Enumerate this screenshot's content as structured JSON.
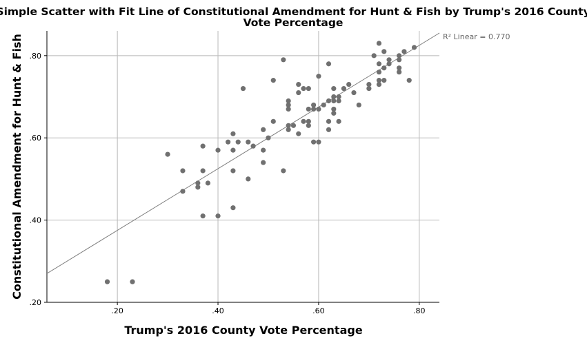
{
  "chart_data": {
    "type": "scatter",
    "title_line1": "Simple Scatter with Fit Line of Constitutional Amendment for Hunt & Fish  by Trump's 2016 County",
    "title_line2": "Vote Percentage",
    "xlabel": "Trump's 2016 County Vote Percentage",
    "ylabel": "Constitutional Amendment for Hunt & Fish",
    "r2_label": "R² Linear = 0.770",
    "xlim": [
      0.06,
      0.84
    ],
    "ylim": [
      0.2,
      0.86
    ],
    "x_ticks": [
      {
        "value": 0.2,
        "label": ".20"
      },
      {
        "value": 0.4,
        "label": ".40"
      },
      {
        "value": 0.6,
        "label": ".60"
      },
      {
        "value": 0.8,
        "label": ".80"
      }
    ],
    "y_ticks": [
      {
        "value": 0.2,
        "label": ".20"
      },
      {
        "value": 0.4,
        "label": ".40"
      },
      {
        "value": 0.6,
        "label": ".60"
      },
      {
        "value": 0.8,
        "label": ".80"
      }
    ],
    "grid": true,
    "point_color": "#707070",
    "line_color": "#7f7f7f",
    "fit_line": {
      "x": [
        0.06,
        0.84
      ],
      "y": [
        0.27,
        0.855
      ]
    },
    "points": [
      [
        0.18,
        0.25
      ],
      [
        0.23,
        0.25
      ],
      [
        0.3,
        0.56
      ],
      [
        0.33,
        0.52
      ],
      [
        0.33,
        0.47
      ],
      [
        0.36,
        0.49
      ],
      [
        0.36,
        0.48
      ],
      [
        0.37,
        0.58
      ],
      [
        0.37,
        0.52
      ],
      [
        0.37,
        0.41
      ],
      [
        0.38,
        0.49
      ],
      [
        0.4,
        0.57
      ],
      [
        0.4,
        0.41
      ],
      [
        0.42,
        0.59
      ],
      [
        0.43,
        0.61
      ],
      [
        0.43,
        0.57
      ],
      [
        0.43,
        0.52
      ],
      [
        0.43,
        0.43
      ],
      [
        0.44,
        0.59
      ],
      [
        0.45,
        0.72
      ],
      [
        0.46,
        0.59
      ],
      [
        0.46,
        0.5
      ],
      [
        0.47,
        0.58
      ],
      [
        0.49,
        0.62
      ],
      [
        0.49,
        0.57
      ],
      [
        0.49,
        0.54
      ],
      [
        0.5,
        0.6
      ],
      [
        0.51,
        0.74
      ],
      [
        0.51,
        0.64
      ],
      [
        0.53,
        0.79
      ],
      [
        0.53,
        0.52
      ],
      [
        0.54,
        0.69
      ],
      [
        0.54,
        0.68
      ],
      [
        0.54,
        0.67
      ],
      [
        0.54,
        0.63
      ],
      [
        0.54,
        0.62
      ],
      [
        0.55,
        0.63
      ],
      [
        0.56,
        0.73
      ],
      [
        0.56,
        0.71
      ],
      [
        0.56,
        0.61
      ],
      [
        0.57,
        0.72
      ],
      [
        0.57,
        0.64
      ],
      [
        0.58,
        0.72
      ],
      [
        0.58,
        0.67
      ],
      [
        0.58,
        0.64
      ],
      [
        0.58,
        0.63
      ],
      [
        0.59,
        0.68
      ],
      [
        0.59,
        0.67
      ],
      [
        0.59,
        0.59
      ],
      [
        0.6,
        0.75
      ],
      [
        0.6,
        0.67
      ],
      [
        0.6,
        0.59
      ],
      [
        0.61,
        0.68
      ],
      [
        0.62,
        0.78
      ],
      [
        0.62,
        0.69
      ],
      [
        0.62,
        0.64
      ],
      [
        0.62,
        0.62
      ],
      [
        0.63,
        0.72
      ],
      [
        0.63,
        0.7
      ],
      [
        0.63,
        0.69
      ],
      [
        0.63,
        0.67
      ],
      [
        0.63,
        0.66
      ],
      [
        0.64,
        0.7
      ],
      [
        0.64,
        0.69
      ],
      [
        0.64,
        0.64
      ],
      [
        0.65,
        0.72
      ],
      [
        0.66,
        0.73
      ],
      [
        0.67,
        0.71
      ],
      [
        0.68,
        0.68
      ],
      [
        0.7,
        0.73
      ],
      [
        0.7,
        0.72
      ],
      [
        0.71,
        0.8
      ],
      [
        0.72,
        0.83
      ],
      [
        0.72,
        0.78
      ],
      [
        0.72,
        0.76
      ],
      [
        0.72,
        0.74
      ],
      [
        0.72,
        0.73
      ],
      [
        0.73,
        0.81
      ],
      [
        0.73,
        0.77
      ],
      [
        0.73,
        0.74
      ],
      [
        0.74,
        0.79
      ],
      [
        0.74,
        0.78
      ],
      [
        0.76,
        0.8
      ],
      [
        0.76,
        0.79
      ],
      [
        0.76,
        0.77
      ],
      [
        0.76,
        0.76
      ],
      [
        0.77,
        0.81
      ],
      [
        0.78,
        0.74
      ],
      [
        0.79,
        0.82
      ]
    ]
  }
}
